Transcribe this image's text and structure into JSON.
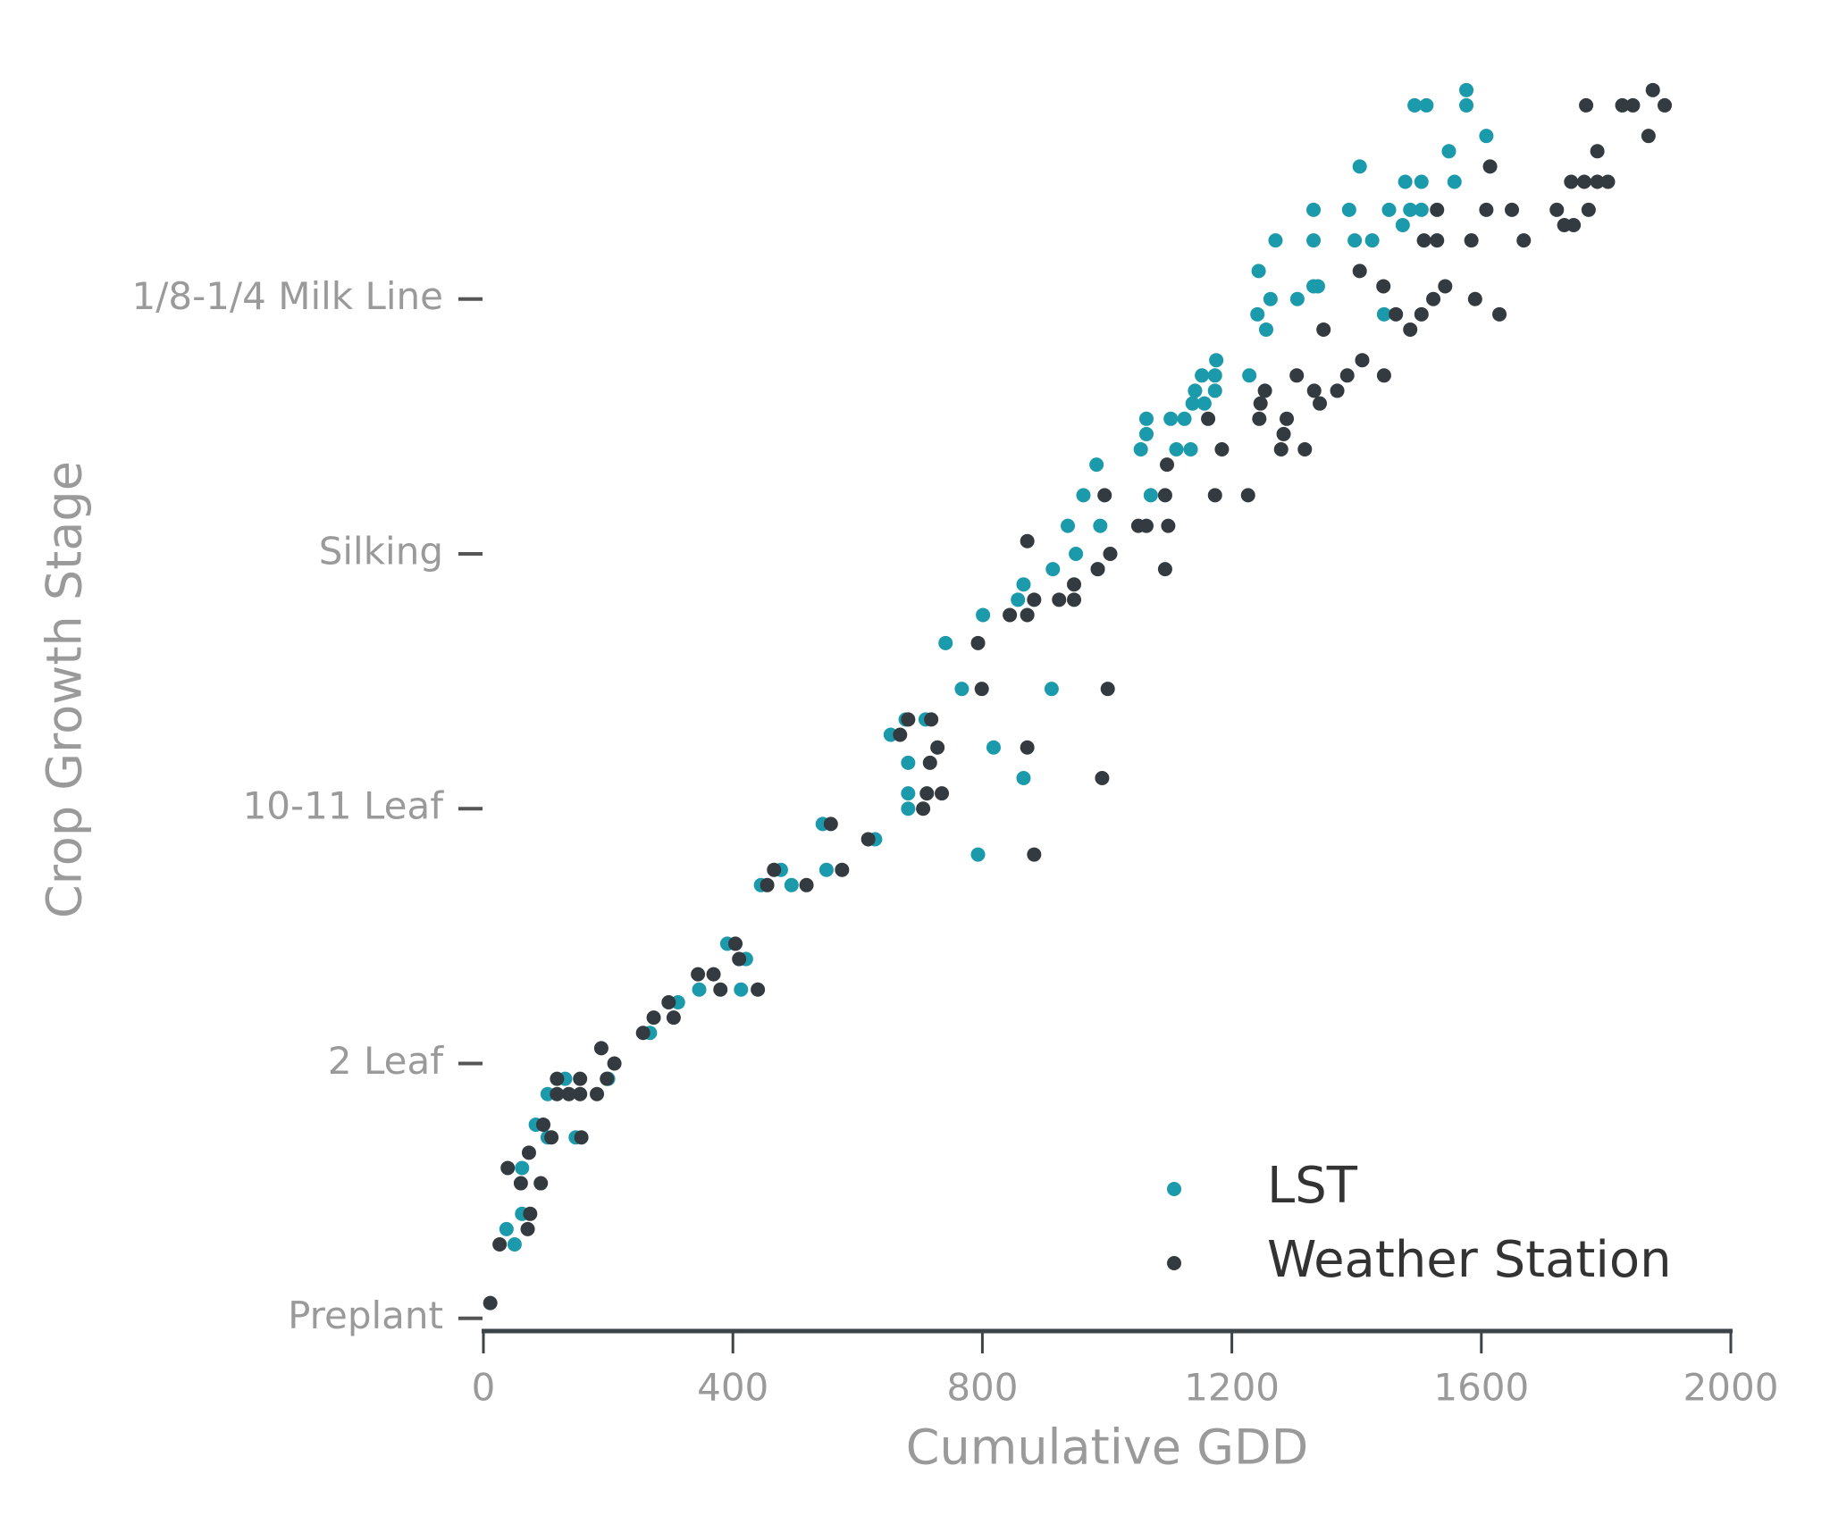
{
  "chart_data": {
    "type": "scatter",
    "xlabel": "Cumulative GDD",
    "ylabel": "Crop Growth Stage",
    "xlim": [
      0,
      2000
    ],
    "xticks": [
      0,
      400,
      800,
      1200,
      1600,
      2000
    ],
    "ylim": [
      -0.05,
      4.9
    ],
    "yticks": [
      {
        "value": 0,
        "label": "Preplant"
      },
      {
        "value": 1,
        "label": "2 Leaf"
      },
      {
        "value": 2,
        "label": "10-11 Leaf"
      },
      {
        "value": 3,
        "label": "Silking"
      },
      {
        "value": 4,
        "label": "1/8-1/4 Milk Line"
      }
    ],
    "grid": false,
    "legend": "lower right",
    "series": [
      {
        "name": "LST",
        "color": "#1a9aab",
        "x": [
          50,
          37,
          62,
          62,
          84,
          103,
          103,
          131,
          148,
          200,
          267,
          312,
          346,
          391,
          413,
          421,
          445,
          477,
          494,
          550,
          544,
          628,
          653,
          681,
          681,
          681,
          677,
          709,
          793,
          767,
          741,
          818,
          866,
          911,
          801,
          866,
          857,
          913,
          950,
          937,
          962,
          985,
          989,
          983,
          1063,
          1054,
          1070,
          1063,
          1102,
          1111,
          1134,
          1124,
          1141,
          1152,
          1137,
          1156,
          1173,
          1173,
          1175,
          1228,
          1241,
          1262,
          1255,
          1243,
          1270,
          1305,
          1331,
          1338,
          1331,
          1331,
          1388,
          1397,
          1425,
          1405,
          1444,
          1452,
          1478,
          1504,
          1474,
          1486,
          1504,
          1493,
          1512,
          1548,
          1557,
          1576,
          1576,
          1608
        ],
        "values": [
          0.29,
          0.35,
          0.41,
          0.59,
          0.76,
          0.71,
          0.88,
          0.94,
          0.71,
          0.94,
          1.12,
          1.24,
          1.29,
          1.47,
          1.29,
          1.41,
          1.7,
          1.76,
          1.7,
          1.76,
          1.94,
          1.88,
          2.29,
          2.18,
          2.06,
          2.0,
          2.35,
          2.35,
          1.82,
          2.47,
          2.65,
          2.24,
          2.12,
          2.47,
          2.76,
          2.88,
          2.82,
          2.94,
          3.0,
          3.11,
          3.23,
          2.94,
          3.11,
          3.35,
          3.47,
          3.41,
          3.23,
          3.53,
          3.53,
          3.41,
          3.41,
          3.53,
          3.64,
          3.7,
          3.59,
          3.59,
          3.64,
          3.7,
          3.76,
          3.7,
          3.94,
          4.0,
          3.88,
          4.11,
          4.23,
          4.0,
          4.05,
          4.05,
          4.23,
          4.35,
          4.35,
          4.23,
          4.23,
          4.52,
          3.94,
          4.35,
          4.46,
          4.46,
          4.29,
          4.35,
          4.35,
          4.76,
          4.76,
          4.58,
          4.46,
          4.82,
          4.76,
          4.64
        ]
      },
      {
        "name": "Weather Station",
        "color": "#333b40",
        "x": [
          11,
          26,
          71,
          75,
          39,
          60,
          92,
          73,
          96,
          109,
          118,
          118,
          137,
          155,
          155,
          157,
          182,
          189,
          198,
          210,
          256,
          273,
          297,
          305,
          344,
          369,
          380,
          404,
          410,
          440,
          455,
          466,
          518,
          557,
          575,
          617,
          668,
          681,
          718,
          728,
          716,
          711,
          735,
          705,
          799,
          793,
          872,
          992,
          1001,
          883,
          844,
          872,
          883,
          923,
          947,
          947,
          985,
          872,
          1005,
          1093,
          1050,
          1063,
          1098,
          996,
          1093,
          1173,
          1226,
          1096,
          1184,
          1162,
          1244,
          1246,
          1253,
          1279,
          1288,
          1283,
          1317,
          1304,
          1332,
          1341,
          1369,
          1385,
          1409,
          1444,
          1347,
          1405,
          1443,
          1463,
          1486,
          1504,
          1523,
          1542,
          1590,
          1629,
          1508,
          1529,
          1529,
          1584,
          1608,
          1649,
          1668,
          1614,
          1721,
          1733,
          1748,
          1772,
          1744,
          1765,
          1786,
          1803,
          1786,
          1768,
          1826,
          1843,
          1868,
          1875,
          1894
        ],
        "values": [
          0.06,
          0.29,
          0.35,
          0.41,
          0.59,
          0.53,
          0.53,
          0.65,
          0.76,
          0.71,
          0.94,
          0.88,
          0.88,
          0.94,
          0.88,
          0.71,
          0.88,
          1.06,
          0.94,
          1.0,
          1.12,
          1.18,
          1.24,
          1.18,
          1.35,
          1.35,
          1.29,
          1.47,
          1.41,
          1.29,
          1.7,
          1.76,
          1.7,
          1.94,
          1.76,
          1.88,
          2.29,
          2.35,
          2.35,
          2.24,
          2.18,
          2.06,
          2.06,
          2.0,
          2.47,
          2.65,
          2.24,
          2.12,
          2.47,
          1.82,
          2.76,
          2.76,
          2.82,
          2.82,
          2.82,
          2.88,
          2.94,
          3.05,
          3.0,
          2.94,
          3.11,
          3.11,
          3.11,
          3.23,
          3.23,
          3.23,
          3.23,
          3.35,
          3.41,
          3.53,
          3.53,
          3.59,
          3.64,
          3.41,
          3.53,
          3.47,
          3.41,
          3.7,
          3.64,
          3.59,
          3.64,
          3.7,
          3.76,
          3.7,
          3.88,
          4.11,
          4.05,
          3.94,
          3.88,
          3.94,
          4.0,
          4.05,
          4.0,
          3.94,
          4.23,
          4.23,
          4.35,
          4.23,
          4.35,
          4.35,
          4.23,
          4.52,
          4.35,
          4.29,
          4.29,
          4.35,
          4.46,
          4.46,
          4.46,
          4.46,
          4.58,
          4.76,
          4.76,
          4.76,
          4.64,
          4.82,
          4.76
        ]
      }
    ]
  }
}
